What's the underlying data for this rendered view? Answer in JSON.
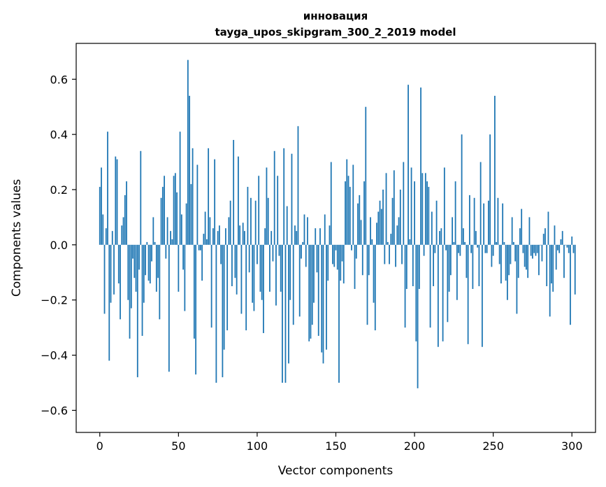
{
  "chart_data": {
    "type": "bar",
    "title": "инновация",
    "subtitle": "tayga_upos_skipgram_300_2_2019 model",
    "xlabel": "Vector components",
    "ylabel": "Components values",
    "xlim": [
      -15,
      315
    ],
    "ylim": [
      -0.68,
      0.73
    ],
    "xticks": [
      0,
      50,
      100,
      150,
      200,
      250,
      300
    ],
    "yticks": [
      -0.6,
      -0.4,
      -0.2,
      0.0,
      0.2,
      0.4,
      0.6
    ],
    "xtick_labels": [
      "0",
      "50",
      "100",
      "150",
      "200",
      "250",
      "300"
    ],
    "ytick_labels": [
      "−0.6",
      "−0.4",
      "−0.2",
      "0.0",
      "0.2",
      "0.4",
      "0.6"
    ],
    "grid": false,
    "bar_color": "#1f77b4",
    "values": [
      0.21,
      0.28,
      0.11,
      -0.25,
      0.06,
      0.41,
      -0.42,
      -0.21,
      0.05,
      -0.18,
      0.32,
      0.31,
      -0.14,
      -0.27,
      0.07,
      0.1,
      0.18,
      0.23,
      -0.2,
      -0.34,
      -0.23,
      -0.05,
      -0.12,
      -0.17,
      -0.48,
      -0.09,
      0.34,
      -0.33,
      -0.21,
      -0.11,
      0.01,
      -0.13,
      -0.14,
      -0.06,
      0.1,
      0.01,
      -0.17,
      -0.12,
      -0.27,
      0.17,
      0.21,
      0.25,
      -0.05,
      0.1,
      -0.46,
      0.05,
      0.02,
      0.25,
      0.26,
      0.19,
      -0.17,
      0.41,
      0.11,
      -0.09,
      -0.24,
      0.15,
      0.67,
      0.54,
      0.22,
      0.35,
      -0.34,
      -0.47,
      0.29,
      -0.02,
      -0.02,
      -0.13,
      0.04,
      0.12,
      0.02,
      0.35,
      0.1,
      -0.3,
      0.06,
      0.31,
      -0.5,
      0.05,
      0.07,
      -0.07,
      -0.48,
      -0.38,
      0.06,
      -0.31,
      0.1,
      0.16,
      -0.15,
      0.38,
      -0.12,
      -0.18,
      0.32,
      0.07,
      -0.25,
      0.08,
      0.05,
      -0.31,
      0.21,
      -0.1,
      0.17,
      -0.21,
      -0.24,
      0.16,
      -0.07,
      0.25,
      -0.17,
      -0.2,
      -0.32,
      0.06,
      0.28,
      0.17,
      -0.17,
      0.05,
      -0.06,
      0.34,
      -0.22,
      0.25,
      -0.04,
      -0.17,
      -0.5,
      0.35,
      -0.5,
      0.14,
      -0.43,
      -0.2,
      0.33,
      -0.29,
      0.07,
      0.05,
      0.43,
      -0.26,
      -0.05,
      0.01,
      0.11,
      -0.08,
      0.1,
      -0.35,
      -0.34,
      -0.29,
      -0.21,
      0.06,
      -0.1,
      -0.33,
      0.06,
      -0.39,
      -0.43,
      0.11,
      -0.38,
      -0.13,
      0.07,
      0.3,
      -0.07,
      -0.08,
      -0.02,
      -0.09,
      -0.5,
      -0.13,
      -0.06,
      -0.14,
      0.23,
      0.31,
      0.25,
      0.21,
      -0.02,
      0.29,
      -0.16,
      -0.05,
      0.15,
      0.18,
      0.09,
      -0.11,
      0.23,
      0.5,
      -0.29,
      -0.11,
      0.1,
      0.02,
      -0.21,
      -0.31,
      0.08,
      0.12,
      0.16,
      0.13,
      0.2,
      -0.07,
      0.26,
      0.01,
      -0.07,
      0.04,
      0.17,
      0.27,
      -0.08,
      0.07,
      0.1,
      0.2,
      -0.07,
      0.3,
      -0.3,
      -0.16,
      0.58,
      0.02,
      0.28,
      -0.15,
      0.23,
      -0.35,
      -0.52,
      -0.16,
      0.57,
      0.26,
      -0.04,
      0.26,
      0.23,
      0.21,
      -0.3,
      0.12,
      -0.15,
      -0.03,
      0.16,
      -0.37,
      0.05,
      0.06,
      -0.35,
      0.28,
      -0.02,
      -0.28,
      -0.17,
      -0.11,
      0.1,
      0.01,
      0.23,
      -0.2,
      -0.03,
      -0.04,
      0.4,
      0.06,
      0.01,
      -0.12,
      -0.36,
      0.18,
      -0.03,
      -0.16,
      0.17,
      0.05,
      -0.01,
      -0.15,
      0.3,
      -0.37,
      0.15,
      -0.03,
      -0.03,
      0.16,
      0.4,
      -0.08,
      -0.04,
      0.54,
      0.01,
      0.17,
      -0.07,
      -0.14,
      0.15,
      0.01,
      -0.13,
      -0.2,
      -0.11,
      -0.07,
      0.1,
      0.01,
      -0.06,
      -0.25,
      -0.12,
      0.06,
      0.13,
      -0.03,
      -0.08,
      -0.09,
      -0.12,
      0.1,
      -0.04,
      -0.05,
      -0.03,
      -0.04,
      -0.03,
      -0.11,
      0.0,
      -0.06,
      0.04,
      0.06,
      -0.15,
      0.12,
      -0.26,
      -0.14,
      -0.17,
      0.07,
      -0.09,
      -0.02,
      -0.03,
      0.02,
      0.05,
      -0.12,
      0.0,
      -0.01,
      -0.03,
      -0.29,
      0.03,
      -0.03,
      -0.18
    ]
  }
}
